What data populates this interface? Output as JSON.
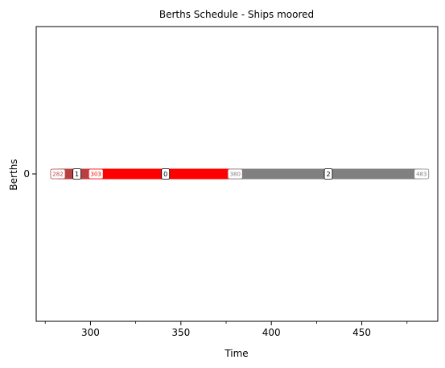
{
  "chart_data": {
    "type": "gantt",
    "title": "Berths Schedule - Ships moored",
    "xlabel": "Time",
    "ylabel": "Berths",
    "xlim": [
      270,
      492
    ],
    "x_ticks": [
      300,
      350,
      400,
      450
    ],
    "x_minor_ticks": [
      275,
      325,
      375,
      425,
      475
    ],
    "y_ticks": [
      "0"
    ],
    "grid": false,
    "bars": [
      {
        "ship": "1",
        "berth": "0",
        "start": 282,
        "end": 303,
        "color": "#b84040",
        "start_label": "282",
        "end_label": "303"
      },
      {
        "ship": "0",
        "berth": "0",
        "start": 303,
        "end": 380,
        "color": "#ff0000",
        "start_label": "303",
        "end_label": "380"
      },
      {
        "ship": "2",
        "berth": "0",
        "start": 380,
        "end": 483,
        "color": "#808080",
        "start_label": "380",
        "end_label": "483"
      }
    ]
  }
}
